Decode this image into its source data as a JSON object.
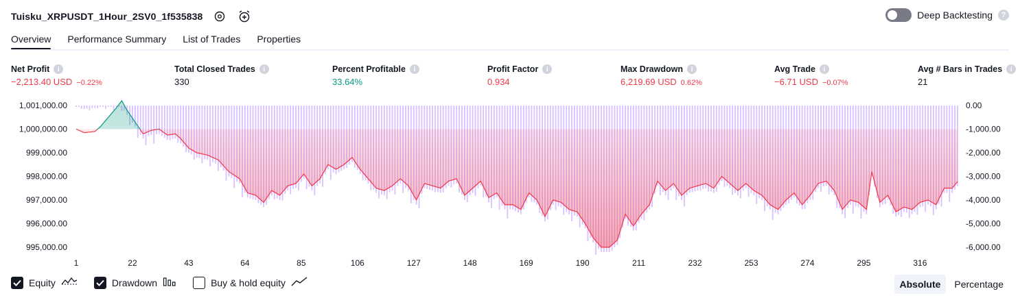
{
  "header": {
    "title": "Tuisku_XRPUSDT_1Hour_2SV0_1f535838",
    "deep_backtesting_label": "Deep Backtesting",
    "help_glyph": "?"
  },
  "tabs": [
    {
      "label": "Overview",
      "active": true
    },
    {
      "label": "Performance Summary",
      "active": false
    },
    {
      "label": "List of Trades",
      "active": false
    },
    {
      "label": "Properties",
      "active": false
    }
  ],
  "stats": [
    {
      "label": "Net Profit",
      "value": "−2,213.40 USD",
      "sub": "−0.22%",
      "color": "#f23645"
    },
    {
      "label": "Total Closed Trades",
      "value": "330",
      "sub": "",
      "color": "#131722"
    },
    {
      "label": "Percent Profitable",
      "value": "33.64%",
      "sub": "",
      "color": "#089981"
    },
    {
      "label": "Profit Factor",
      "value": "0.934",
      "sub": "",
      "color": "#f23645"
    },
    {
      "label": "Max Drawdown",
      "value": "6,219.69 USD",
      "sub": "0.62%",
      "color": "#f23645"
    },
    {
      "label": "Avg Trade",
      "value": "−6.71 USD",
      "sub": "−0.07%",
      "color": "#f23645"
    },
    {
      "label": "Avg # Bars in Trades",
      "value": "21",
      "sub": "",
      "color": "#131722"
    }
  ],
  "chart_data": {
    "type": "line",
    "left_axis_ticks": [
      "1,001,000.00",
      "1,000,000.00",
      "999,000.00",
      "998,000.00",
      "997,000.00",
      "996,000.00",
      "995,000.00"
    ],
    "left_axis_values": [
      1001000,
      1000000,
      999000,
      998000,
      997000,
      996000,
      995000
    ],
    "right_axis_ticks": [
      "0.00",
      "-1,000.00",
      "-2,000.00",
      "-3,000.00",
      "-4,000.00",
      "-5,000.00",
      "-6,000.00"
    ],
    "right_axis_values": [
      0,
      -1000,
      -2000,
      -3000,
      -4000,
      -5000,
      -6000
    ],
    "x_ticks": [
      "1",
      "22",
      "43",
      "64",
      "85",
      "106",
      "127",
      "148",
      "169",
      "190",
      "211",
      "232",
      "253",
      "274",
      "295",
      "316"
    ],
    "x_range": [
      1,
      330
    ],
    "initial_capital": 1000000,
    "series": [
      {
        "name": "Equity",
        "color": "#f23645",
        "values": [
          [
            1,
            1000000
          ],
          [
            4,
            999850
          ],
          [
            8,
            999900
          ],
          [
            10,
            1000100
          ],
          [
            13,
            1000500
          ],
          [
            16,
            1000900
          ],
          [
            18,
            1001200
          ],
          [
            20,
            1000800
          ],
          [
            23,
            1000300
          ],
          [
            26,
            999800
          ],
          [
            29,
            999950
          ],
          [
            32,
            1000000
          ],
          [
            35,
            999750
          ],
          [
            38,
            999800
          ],
          [
            40,
            999600
          ],
          [
            43,
            999200
          ],
          [
            46,
            999000
          ],
          [
            50,
            998900
          ],
          [
            54,
            998700
          ],
          [
            58,
            998200
          ],
          [
            62,
            997900
          ],
          [
            65,
            997300
          ],
          [
            68,
            997200
          ],
          [
            71,
            996900
          ],
          [
            74,
            997400
          ],
          [
            77,
            997200
          ],
          [
            80,
            997600
          ],
          [
            83,
            997700
          ],
          [
            86,
            998100
          ],
          [
            89,
            997600
          ],
          [
            92,
            997900
          ],
          [
            95,
            998500
          ],
          [
            98,
            998300
          ],
          [
            101,
            998500
          ],
          [
            104,
            998800
          ],
          [
            107,
            998300
          ],
          [
            110,
            997900
          ],
          [
            113,
            997500
          ],
          [
            116,
            997400
          ],
          [
            119,
            997600
          ],
          [
            122,
            997900
          ],
          [
            125,
            997600
          ],
          [
            128,
            997000
          ],
          [
            131,
            997700
          ],
          [
            134,
            997600
          ],
          [
            137,
            997500
          ],
          [
            140,
            997800
          ],
          [
            143,
            997900
          ],
          [
            146,
            997200
          ],
          [
            149,
            997500
          ],
          [
            152,
            997800
          ],
          [
            155,
            997100
          ],
          [
            158,
            997300
          ],
          [
            161,
            996800
          ],
          [
            164,
            996800
          ],
          [
            167,
            996600
          ],
          [
            170,
            997300
          ],
          [
            173,
            997000
          ],
          [
            176,
            996300
          ],
          [
            179,
            997000
          ],
          [
            182,
            996900
          ],
          [
            185,
            996600
          ],
          [
            188,
            996500
          ],
          [
            191,
            996000
          ],
          [
            194,
            995400
          ],
          [
            197,
            995000
          ],
          [
            200,
            995000
          ],
          [
            203,
            995300
          ],
          [
            206,
            996400
          ],
          [
            209,
            995900
          ],
          [
            212,
            996400
          ],
          [
            215,
            996800
          ],
          [
            218,
            997800
          ],
          [
            221,
            997400
          ],
          [
            224,
            997700
          ],
          [
            227,
            997200
          ],
          [
            230,
            997500
          ],
          [
            233,
            997600
          ],
          [
            236,
            997700
          ],
          [
            239,
            997500
          ],
          [
            242,
            998000
          ],
          [
            245,
            997700
          ],
          [
            248,
            997400
          ],
          [
            251,
            997700
          ],
          [
            254,
            997400
          ],
          [
            257,
            997200
          ],
          [
            260,
            996800
          ],
          [
            263,
            996600
          ],
          [
            266,
            997000
          ],
          [
            269,
            997300
          ],
          [
            272,
            996800
          ],
          [
            275,
            997200
          ],
          [
            278,
            997700
          ],
          [
            281,
            997800
          ],
          [
            284,
            997400
          ],
          [
            287,
            996600
          ],
          [
            290,
            997000
          ],
          [
            293,
            996900
          ],
          [
            296,
            996600
          ],
          [
            298,
            998200
          ],
          [
            301,
            996900
          ],
          [
            304,
            997200
          ],
          [
            307,
            996500
          ],
          [
            310,
            996700
          ],
          [
            313,
            996600
          ],
          [
            316,
            996900
          ],
          [
            319,
            997000
          ],
          [
            322,
            996800
          ],
          [
            325,
            997500
          ],
          [
            328,
            997500
          ],
          [
            330,
            997780
          ]
        ]
      },
      {
        "name": "Drawdown",
        "color": "#b98cff"
      },
      {
        "name": "Buy & hold equity",
        "color": "#131722"
      }
    ]
  },
  "legend": [
    {
      "label": "Equity",
      "checked": true,
      "icon": "equity-line-icon"
    },
    {
      "label": "Drawdown",
      "checked": true,
      "icon": "drawdown-bars-icon"
    },
    {
      "label": "Buy & hold equity",
      "checked": false,
      "icon": "buy-hold-line-icon"
    }
  ],
  "modes": [
    {
      "label": "Absolute",
      "active": true
    },
    {
      "label": "Percentage",
      "active": false
    }
  ]
}
